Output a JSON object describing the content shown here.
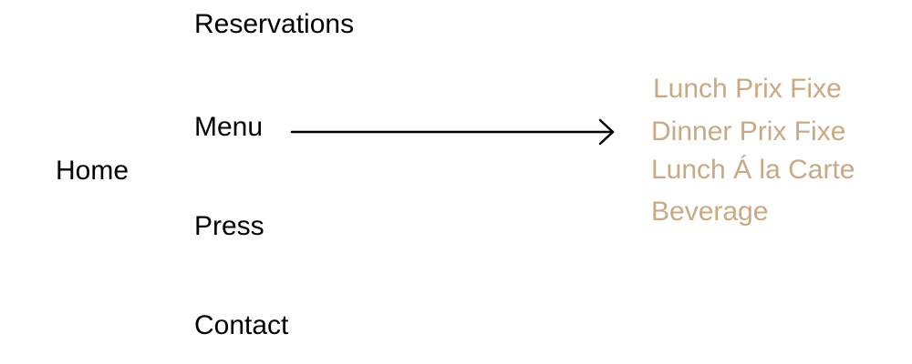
{
  "nav": {
    "home": "Home",
    "reservations": "Reservations",
    "menu": "Menu",
    "press": "Press",
    "contact": "Contact"
  },
  "submenu": {
    "items": [
      "Lunch Prix Fixe",
      "Dinner Prix Fixe",
      "Lunch Á la Carte",
      "Beverage"
    ]
  },
  "colors": {
    "nav_text": "#000000",
    "submenu_text": "#c8a982",
    "arrow": "#000000",
    "background": "#ffffff"
  },
  "icons": {
    "arrow": "right-arrow-icon"
  }
}
